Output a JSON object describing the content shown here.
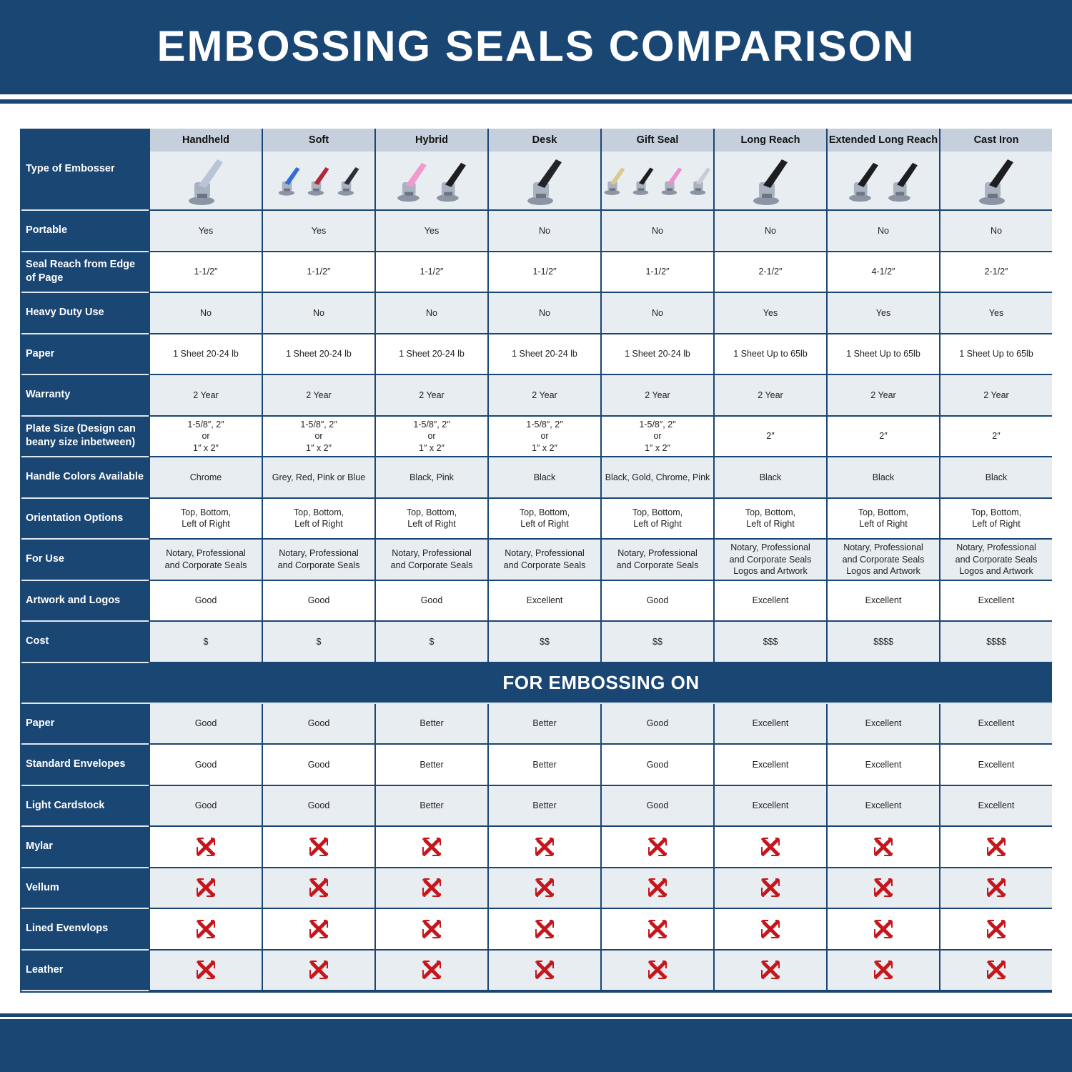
{
  "title": "EMBOSSING SEALS COMPARISON",
  "section_title": "FOR EMBOSSING ON",
  "corner_label": "Type of Embosser",
  "columns": [
    {
      "name": "Handheld",
      "handle_colors": [
        "#b9c4d6"
      ]
    },
    {
      "name": "Soft",
      "handle_colors": [
        "#2f6fd6",
        "#b0283a",
        "#2a2f3a"
      ]
    },
    {
      "name": "Hybrid",
      "handle_colors": [
        "#f29ad0",
        "#1e1e22"
      ]
    },
    {
      "name": "Desk",
      "handle_colors": [
        "#22242a"
      ]
    },
    {
      "name": "Gift Seal",
      "handle_colors": [
        "#d9c98a",
        "#1e1e22",
        "#ee8fd0",
        "#c8ccd4"
      ]
    },
    {
      "name": "Long Reach",
      "handle_colors": [
        "#1e1e22"
      ]
    },
    {
      "name": "Extended Long Reach",
      "handle_colors": [
        "#1e1e22",
        "#1e1e22"
      ]
    },
    {
      "name": "Cast Iron",
      "handle_colors": [
        "#1e1e22"
      ]
    }
  ],
  "rows": [
    {
      "label": "Portable",
      "values": [
        "Yes",
        "Yes",
        "Yes",
        "No",
        "No",
        "No",
        "No",
        "No"
      ]
    },
    {
      "label": "Seal Reach from Edge of Page",
      "values": [
        "1-1/2″",
        "1-1/2″",
        "1-1/2″",
        "1-1/2″",
        "1-1/2″",
        "2-1/2″",
        "4-1/2″",
        "2-1/2″"
      ]
    },
    {
      "label": "Heavy Duty Use",
      "values": [
        "No",
        "No",
        "No",
        "No",
        "No",
        "Yes",
        "Yes",
        "Yes"
      ]
    },
    {
      "label": "Paper",
      "values": [
        "1 Sheet 20-24 lb",
        "1 Sheet 20-24 lb",
        "1 Sheet 20-24 lb",
        "1 Sheet 20-24 lb",
        "1 Sheet 20-24 lb",
        "1 Sheet Up to 65lb",
        "1 Sheet Up to 65lb",
        "1 Sheet Up to 65lb"
      ]
    },
    {
      "label": "Warranty",
      "values": [
        "2 Year",
        "2 Year",
        "2 Year",
        "2 Year",
        "2 Year",
        "2 Year",
        "2 Year",
        "2 Year"
      ]
    },
    {
      "label": "Plate Size (Design can beany size inbetween)",
      "values": [
        "1-5/8″, 2″\nor\n1″ x 2″",
        "1-5/8″, 2″\nor\n1″ x 2″",
        "1-5/8″, 2″\nor\n1″ x 2″",
        "1-5/8″, 2″\nor\n1″ x 2″",
        "1-5/8″, 2″\nor\n1″ x 2″",
        "2″",
        "2″",
        "2″"
      ]
    },
    {
      "label": "Handle Colors Available",
      "values": [
        "Chrome",
        "Grey, Red, Pink or Blue",
        "Black, Pink",
        "Black",
        "Black, Gold, Chrome, Pink",
        "Black",
        "Black",
        "Black"
      ]
    },
    {
      "label": "Orientation Options",
      "values": [
        "Top, Bottom,\nLeft of Right",
        "Top, Bottom,\nLeft of Right",
        "Top, Bottom,\nLeft of Right",
        "Top, Bottom,\nLeft of Right",
        "Top, Bottom,\nLeft of Right",
        "Top, Bottom,\nLeft of Right",
        "Top, Bottom,\nLeft of Right",
        "Top, Bottom,\nLeft of Right"
      ]
    },
    {
      "label": "For Use",
      "values": [
        "Notary, Professional\nand Corporate Seals",
        "Notary, Professional\nand Corporate Seals",
        "Notary, Professional\nand Corporate Seals",
        "Notary, Professional\nand Corporate Seals",
        "Notary, Professional\nand Corporate Seals",
        "Notary, Professional\nand Corporate Seals\nLogos and Artwork",
        "Notary, Professional\nand Corporate Seals\nLogos and Artwork",
        "Notary, Professional\nand Corporate Seals\nLogos and Artwork"
      ]
    },
    {
      "label": "Artwork and Logos",
      "values": [
        "Good",
        "Good",
        "Good",
        "Excellent",
        "Good",
        "Excellent",
        "Excellent",
        "Excellent"
      ]
    },
    {
      "label": "Cost",
      "values": [
        "$",
        "$",
        "$",
        "$$",
        "$$",
        "$$$",
        "$$$$",
        "$$$$"
      ]
    }
  ],
  "embossing_rows": [
    {
      "label": "Paper",
      "values": [
        "Good",
        "Good",
        "Better",
        "Better",
        "Good",
        "Excellent",
        "Excellent",
        "Excellent"
      ]
    },
    {
      "label": "Standard Envelopes",
      "values": [
        "Good",
        "Good",
        "Better",
        "Better",
        "Good",
        "Excellent",
        "Excellent",
        "Excellent"
      ]
    },
    {
      "label": "Light Cardstock",
      "values": [
        "Good",
        "Good",
        "Better",
        "Better",
        "Good",
        "Excellent",
        "Excellent",
        "Excellent"
      ]
    },
    {
      "label": "Mylar",
      "values": [
        "x",
        "x",
        "x",
        "x",
        "x",
        "x",
        "x",
        "x"
      ]
    },
    {
      "label": "Vellum",
      "values": [
        "x",
        "x",
        "x",
        "x",
        "x",
        "x",
        "x",
        "x"
      ]
    },
    {
      "label": "Lined Evenvlops",
      "values": [
        "x",
        "x",
        "x",
        "x",
        "x",
        "x",
        "x",
        "x"
      ]
    },
    {
      "label": "Leather",
      "values": [
        "x",
        "x",
        "x",
        "x",
        "x",
        "x",
        "x",
        "x"
      ]
    }
  ],
  "icons": {
    "not_supported": "red-x-icon"
  },
  "colors": {
    "navy": "#1a4674",
    "header_cell": "#c5d0dc",
    "row_alt": "#e8edf2",
    "x_red": "#c4161c"
  }
}
